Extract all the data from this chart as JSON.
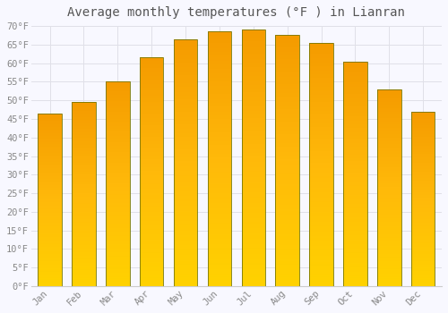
{
  "title": "Average monthly temperatures (°F ) in Lianran",
  "months": [
    "Jan",
    "Feb",
    "Mar",
    "Apr",
    "May",
    "Jun",
    "Jul",
    "Aug",
    "Sep",
    "Oct",
    "Nov",
    "Dec"
  ],
  "values": [
    46.5,
    49.5,
    55.0,
    61.5,
    66.5,
    68.5,
    69.0,
    67.5,
    65.5,
    60.5,
    53.0,
    47.0
  ],
  "bar_color_bottom": "#FFCC00",
  "bar_color_mid": "#FFD940",
  "bar_color_top": "#F5A800",
  "bar_edge_color": "#888800",
  "background_color": "#f8f8ff",
  "grid_color": "#e0e0e8",
  "text_color": "#888888",
  "title_color": "#555555",
  "ylim": [
    0,
    70
  ],
  "yticks": [
    0,
    5,
    10,
    15,
    20,
    25,
    30,
    35,
    40,
    45,
    50,
    55,
    60,
    65,
    70
  ],
  "ytick_labels": [
    "0°F",
    "5°F",
    "10°F",
    "15°F",
    "20°F",
    "25°F",
    "30°F",
    "35°F",
    "40°F",
    "45°F",
    "50°F",
    "55°F",
    "60°F",
    "65°F",
    "70°F"
  ],
  "title_fontsize": 10,
  "tick_fontsize": 7.5,
  "figsize": [
    5.0,
    3.5
  ],
  "dpi": 100,
  "bar_width": 0.7
}
